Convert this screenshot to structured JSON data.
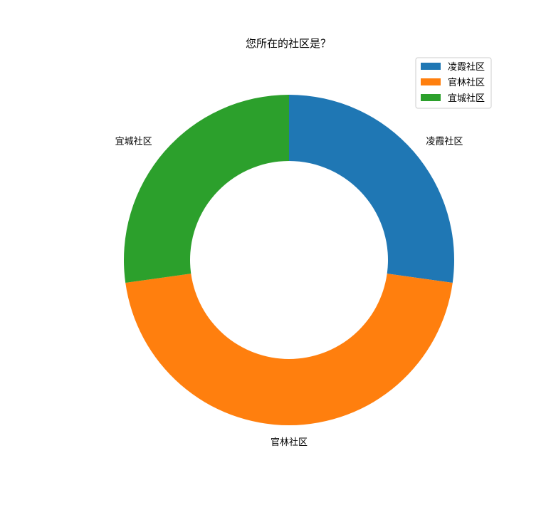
{
  "chart_data": {
    "type": "pie",
    "donut": true,
    "title": "您所在的社区是？",
    "categories": [
      "凌霞社区",
      "官林社区",
      "宜城社区"
    ],
    "values": [
      27.2,
      45.6,
      27.2
    ],
    "colors": [
      "#1f77b4",
      "#ff7f0e",
      "#2ca02c"
    ],
    "start_angle": 90,
    "direction": "clockwise",
    "legend": {
      "position": "top-right",
      "entries": [
        "凌霞社区",
        "官林社区",
        "宜城社区"
      ]
    }
  }
}
